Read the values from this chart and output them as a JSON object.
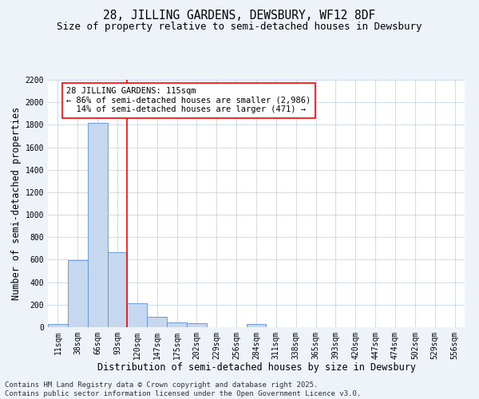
{
  "title": "28, JILLING GARDENS, DEWSBURY, WF12 8DF",
  "subtitle": "Size of property relative to semi-detached houses in Dewsbury",
  "xlabel": "Distribution of semi-detached houses by size in Dewsbury",
  "ylabel": "Number of semi-detached properties",
  "categories": [
    "11sqm",
    "38sqm",
    "66sqm",
    "93sqm",
    "120sqm",
    "147sqm",
    "175sqm",
    "202sqm",
    "229sqm",
    "256sqm",
    "284sqm",
    "311sqm",
    "338sqm",
    "365sqm",
    "393sqm",
    "420sqm",
    "447sqm",
    "474sqm",
    "502sqm",
    "529sqm",
    "556sqm"
  ],
  "values": [
    25,
    595,
    1820,
    670,
    215,
    95,
    45,
    38,
    0,
    0,
    25,
    0,
    0,
    0,
    0,
    0,
    0,
    0,
    0,
    0,
    0
  ],
  "bar_color": "#c5d8f0",
  "bar_edge_color": "#5b8fd4",
  "grid_color": "#c8d4e8",
  "background_color": "#eef2f9",
  "plot_background": "#ffffff",
  "vline_x_index": 4,
  "vline_color": "red",
  "annotation_text": "28 JILLING GARDENS: 115sqm\n← 86% of semi-detached houses are smaller (2,986)\n  14% of semi-detached houses are larger (471) →",
  "annotation_box_color": "white",
  "annotation_box_edge": "red",
  "ylim": [
    0,
    2200
  ],
  "yticks": [
    0,
    200,
    400,
    600,
    800,
    1000,
    1200,
    1400,
    1600,
    1800,
    2000,
    2200
  ],
  "footer_line1": "Contains HM Land Registry data © Crown copyright and database right 2025.",
  "footer_line2": "Contains public sector information licensed under the Open Government Licence v3.0.",
  "title_fontsize": 10.5,
  "subtitle_fontsize": 9,
  "axis_label_fontsize": 8.5,
  "tick_fontsize": 7,
  "annotation_fontsize": 7.5,
  "footer_fontsize": 6.5
}
